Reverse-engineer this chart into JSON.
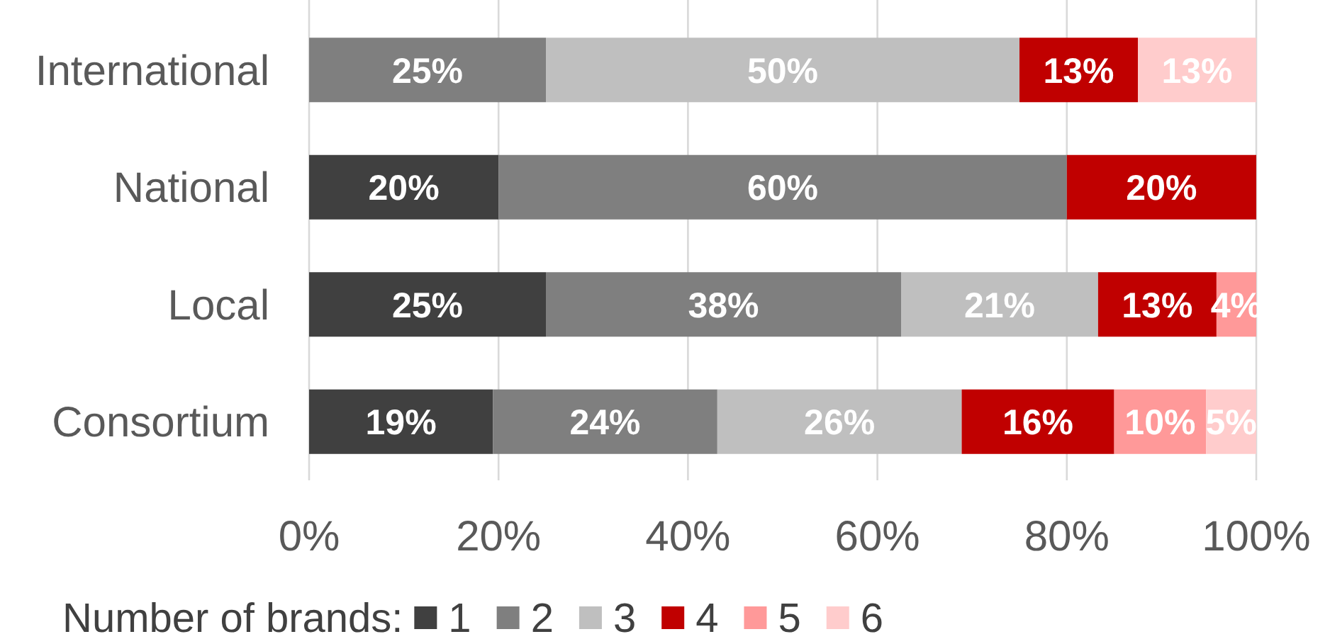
{
  "chart_data": {
    "type": "bar",
    "orientation": "horizontal",
    "stacked": true,
    "categories": [
      "International",
      "National",
      "Local",
      "Consortium"
    ],
    "series": [
      {
        "name": "1",
        "color": "#404040",
        "values": [
          null,
          20,
          25,
          19.4
        ],
        "value_labels": [
          null,
          "20%",
          "25%",
          "19%"
        ]
      },
      {
        "name": "2",
        "color": "#7f7f7f",
        "values": [
          25,
          60,
          37.5,
          23.7
        ],
        "value_labels": [
          "25%",
          "60%",
          "38%",
          "24%"
        ]
      },
      {
        "name": "3",
        "color": "#bfbfbf",
        "values": [
          50,
          null,
          20.8,
          25.8
        ],
        "value_labels": [
          "50%",
          null,
          "21%",
          "26%"
        ]
      },
      {
        "name": "4",
        "color": "#c00000",
        "values": [
          12.5,
          20,
          12.5,
          16.1
        ],
        "value_labels": [
          "13%",
          "20%",
          "13%",
          "16%"
        ]
      },
      {
        "name": "5",
        "color": "#ff9999",
        "values": [
          null,
          null,
          4.2,
          9.7
        ],
        "value_labels": [
          null,
          null,
          "4%",
          "10%"
        ]
      },
      {
        "name": "6",
        "color": "#ffcccc",
        "values": [
          12.5,
          null,
          null,
          5.3
        ],
        "value_labels": [
          "13%",
          null,
          null,
          "5%"
        ]
      }
    ],
    "xlim": [
      0,
      100
    ],
    "xticks": [
      {
        "value": 0,
        "label": "0%"
      },
      {
        "value": 20,
        "label": "20%"
      },
      {
        "value": 40,
        "label": "40%"
      },
      {
        "value": 60,
        "label": "60%"
      },
      {
        "value": 80,
        "label": "80%"
      },
      {
        "value": 100,
        "label": "100%"
      }
    ],
    "grid": "x",
    "legend": "bottom",
    "legend_title": "Number of brands:"
  }
}
